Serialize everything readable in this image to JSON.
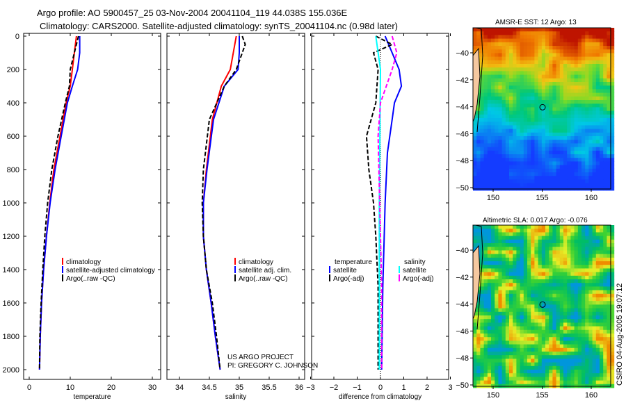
{
  "title_line1": "Argo profile: AO 5900457_25 03-Nov-2004 20041104_119 44.038S 155.036E",
  "title_line2": "Climatology: CARS2000. Satellite-adjusted climatology: synTS_20041104.nc (0.98d later)",
  "credit_line1": "US ARGO PROJECT",
  "credit_line2": "PI: GREGORY C. JOHNSON",
  "side_stamp": "CSIRO 04-Aug-2005 19:07:12",
  "colors": {
    "climatology": "#ff0000",
    "satellite": "#0000ff",
    "argo": "#000000",
    "sal_satellite": "#00ffff",
    "sal_argo": "#ff00ff"
  },
  "chart_data": [
    {
      "type": "line",
      "xlabel": "temperature",
      "ylabel": "",
      "xlim": [
        -2,
        32
      ],
      "ylim": [
        2050,
        0
      ],
      "xticks": [
        "0",
        "10",
        "20",
        "30"
      ],
      "yticks": [
        "0",
        "200",
        "400",
        "600",
        "800",
        "1000",
        "1200",
        "1400",
        "1600",
        "1800",
        "2000"
      ],
      "legend": [
        "climatology",
        "satellite-adjusted climatology",
        "Argo(..raw -QC)"
      ],
      "series": [
        {
          "name": "climatology",
          "depth": [
            0,
            100,
            200,
            300,
            400,
            600,
            800,
            1000,
            1200,
            1400,
            1600,
            1800,
            2000
          ],
          "values": [
            11.5,
            11,
            10.5,
            10,
            9,
            7.5,
            6,
            5,
            4.2,
            3.5,
            3,
            2.7,
            2.5
          ]
        },
        {
          "name": "satellite-adjusted climatology",
          "depth": [
            0,
            100,
            200,
            300,
            400,
            600,
            800,
            1000,
            1200,
            1400,
            1600,
            1800,
            2000
          ],
          "values": [
            12.3,
            12.3,
            11.8,
            10.5,
            9.3,
            7.8,
            6.3,
            5.1,
            4.2,
            3.5,
            3,
            2.7,
            2.5
          ]
        },
        {
          "name": "Argo(..raw -QC)",
          "depth": [
            0,
            100,
            200,
            300,
            400,
            600,
            800,
            1000,
            1200,
            1400,
            1600,
            1800,
            2000
          ],
          "values": [
            12,
            11,
            10,
            9.8,
            8.8,
            7,
            5.5,
            4.5,
            3.8,
            3.3,
            2.9,
            2.6,
            2.5
          ]
        }
      ]
    },
    {
      "type": "line",
      "xlabel": "salinity",
      "xlim": [
        33.6,
        36.1
      ],
      "ylim": [
        2050,
        0
      ],
      "xticks": [
        "34",
        "34.5",
        "35",
        "35.5",
        "36"
      ],
      "legend": [
        "climatology",
        "satellite adj. clim.",
        "Argo(..raw -QC)"
      ],
      "series": [
        {
          "name": "climatology",
          "depth": [
            0,
            100,
            200,
            300,
            500,
            800,
            1000,
            1200,
            1400,
            1600,
            1800,
            2000
          ],
          "values": [
            34.95,
            34.9,
            34.85,
            34.7,
            34.55,
            34.45,
            34.4,
            34.4,
            34.45,
            34.53,
            34.6,
            34.68
          ]
        },
        {
          "name": "satellite adj. clim.",
          "depth": [
            0,
            100,
            200,
            300,
            500,
            800,
            1000,
            1200,
            1400,
            1600,
            1800,
            2000
          ],
          "values": [
            35,
            35,
            34.98,
            34.75,
            34.57,
            34.46,
            34.4,
            34.4,
            34.45,
            34.53,
            34.6,
            34.68
          ]
        },
        {
          "name": "Argo(..raw -QC)",
          "depth": [
            0,
            50,
            100,
            200,
            300,
            500,
            800,
            1000,
            1200,
            1400,
            1600,
            1800,
            2000
          ],
          "values": [
            35.05,
            35.1,
            35.05,
            34.95,
            34.75,
            34.5,
            34.4,
            34.38,
            34.4,
            34.45,
            34.55,
            34.62,
            34.68
          ]
        }
      ]
    },
    {
      "type": "line",
      "xlabel": "difference from climatology",
      "xlim": [
        -3,
        3
      ],
      "ylim": [
        2050,
        0
      ],
      "xticks": [
        "-3",
        "-2",
        "-1",
        "0",
        "1",
        "2",
        "3"
      ],
      "legend_temperature": {
        "title": "temperature",
        "items": [
          "satellite",
          "Argo(-adj)"
        ]
      },
      "legend_salinity": {
        "title": "salinity",
        "items": [
          "satellite",
          "Argo(-adj)"
        ]
      },
      "series": [
        {
          "name": "temperature satellite",
          "depth": [
            0,
            100,
            200,
            300,
            400,
            500,
            700,
            1000,
            1500,
            2000
          ],
          "values": [
            0.2,
            0.5,
            0.8,
            0.9,
            0.6,
            0.5,
            0.3,
            0.2,
            0.1,
            0.05
          ]
        },
        {
          "name": "temperature Argo(-adj)",
          "depth": [
            0,
            50,
            100,
            200,
            400,
            600,
            800,
            1000,
            1200,
            1500,
            2000
          ],
          "values": [
            -0.2,
            0.5,
            -0.3,
            -0.1,
            -0.2,
            -0.6,
            -0.5,
            -0.3,
            -0.2,
            -0.1,
            -0.1
          ]
        },
        {
          "name": "salinity satellite",
          "depth": [
            0,
            200,
            1000,
            2000
          ],
          "values": [
            -0.2,
            0,
            -0.05,
            -0.05
          ]
        },
        {
          "name": "salinity Argo(-adj)",
          "depth": [
            0,
            100,
            200,
            400,
            600,
            900,
            1500,
            2000
          ],
          "values": [
            0.5,
            0.7,
            0.5,
            0,
            -0.1,
            -0.05,
            0.05,
            0.05
          ]
        }
      ]
    },
    {
      "type": "heatmap",
      "title": "AMSR-E SST: 12 Argo: 13",
      "xlim": [
        148,
        162.2
      ],
      "ylim": [
        -50,
        -38.2
      ],
      "xticks": [
        "150",
        "155",
        "160"
      ],
      "yticks": [
        "-40",
        "-42",
        "-44",
        "-46",
        "-48",
        "-50"
      ],
      "marker": [
        155.036,
        -44.038
      ]
    },
    {
      "type": "heatmap",
      "title": "Altimetric SLA: 0.017 Argo: -0.076",
      "xlim": [
        148,
        162.2
      ],
      "ylim": [
        -50,
        -38.2
      ],
      "xticks": [
        "150",
        "155",
        "160"
      ],
      "yticks": [
        "-40",
        "-42",
        "-44",
        "-46",
        "-48",
        "-50"
      ],
      "marker": [
        155.036,
        -44.038
      ]
    }
  ]
}
